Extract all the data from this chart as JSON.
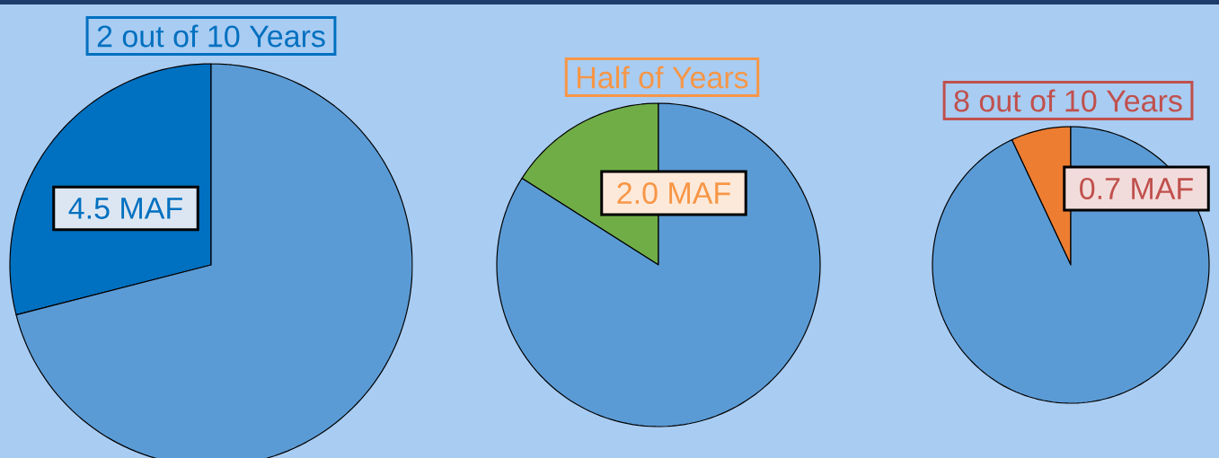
{
  "chart_data": [
    {
      "type": "pie",
      "title": "2 out of 10 Years",
      "categories": [
        null,
        null
      ],
      "values": [
        29,
        71
      ],
      "colors": [
        "#0070c0",
        "#5b9bd5"
      ],
      "annotations": [
        "4.5 MAF"
      ]
    },
    {
      "type": "pie",
      "title": "Half of Years",
      "categories": [
        null,
        null
      ],
      "values": [
        16,
        84
      ],
      "colors": [
        "#70ad47",
        "#5b9bd5"
      ],
      "annotations": [
        "2.0 MAF"
      ]
    },
    {
      "type": "pie",
      "title": "8 out of 10 Years",
      "categories": [
        null,
        null
      ],
      "values": [
        7,
        93
      ],
      "colors": [
        "#ed7d31",
        "#5b9bd5"
      ],
      "annotations": [
        "0.7 MAF"
      ]
    }
  ]
}
